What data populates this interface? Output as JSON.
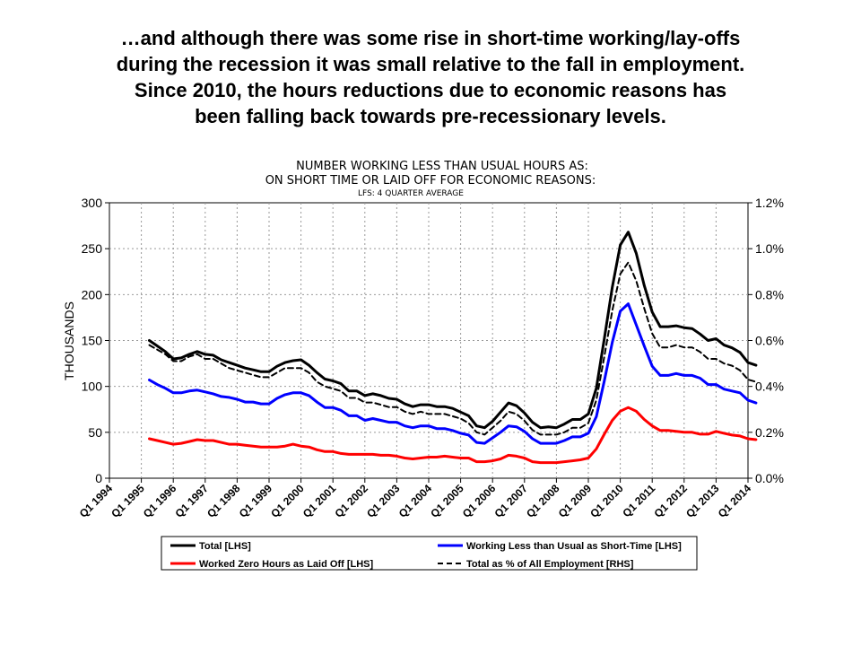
{
  "slide": {
    "title_lines": [
      "…and although there was some rise in short-time working/lay-offs",
      "during the recession it was small relative to the fall in employment.",
      "Since 2010, the hours reductions due to economic reasons has",
      "been falling back towards pre-recessionary levels."
    ]
  },
  "chart_data": {
    "type": "line",
    "title": [
      "NUMBER WORKING LESS THAN USUAL HOURS AS:",
      "ON SHORT TIME OR LAID OFF FOR ECONOMIC REASONS:"
    ],
    "subtitle": "LFS: 4 QUARTER AVERAGE",
    "ylabel_left": "THOUSANDS",
    "ylim_left": [
      0,
      300
    ],
    "yticks_left": [
      "0",
      "50",
      "100",
      "150",
      "200",
      "250",
      "300"
    ],
    "ylim_right": [
      0,
      1.2
    ],
    "yticks_right": [
      "0.0%",
      "0.2%",
      "0.4%",
      "0.6%",
      "0.8%",
      "1.0%",
      "1.2%"
    ],
    "x_tick_labels": [
      "Q1 1994",
      "Q1 1995",
      "Q1 1996",
      "Q1 1997",
      "Q1 1998",
      "Q1 1999",
      "Q1 2000",
      "Q1 2001",
      "Q1 2002",
      "Q1 2003",
      "Q1 2004",
      "Q1 2005",
      "Q1 2006",
      "Q1 2007",
      "Q1 2008",
      "Q1 2009",
      "Q1 2010",
      "Q1 2011",
      "Q1 2012",
      "Q1 2013",
      "Q1 2014"
    ],
    "x_start": "Q1 1995",
    "x_end": "Q4 2013",
    "grid": true,
    "legend_position": "bottom",
    "series": [
      {
        "name": "Total [LHS]",
        "axis": "left",
        "color": "#000000",
        "dash": "solid",
        "values": [
          150,
          144,
          138,
          130,
          131,
          135,
          138,
          135,
          134,
          129,
          126,
          123,
          120,
          118,
          116,
          116,
          122,
          126,
          128,
          129,
          123,
          115,
          108,
          106,
          103,
          95,
          95,
          90,
          92,
          90,
          87,
          86,
          81,
          78,
          80,
          80,
          78,
          78,
          76,
          72,
          68,
          57,
          55,
          62,
          72,
          82,
          79,
          71,
          61,
          55,
          56,
          55,
          59,
          64,
          64,
          70,
          98,
          152,
          208,
          254,
          268,
          245,
          210,
          181,
          165,
          165,
          166,
          164,
          163,
          157,
          150,
          152,
          145,
          142,
          137,
          126,
          123
        ]
      },
      {
        "name": "Working Less than Usual as Short-Time [LHS]",
        "axis": "left",
        "color": "#0000ff",
        "dash": "solid",
        "values": [
          107,
          102,
          98,
          93,
          93,
          95,
          96,
          94,
          92,
          89,
          88,
          86,
          83,
          83,
          81,
          81,
          87,
          91,
          93,
          93,
          90,
          83,
          77,
          77,
          74,
          68,
          68,
          63,
          65,
          63,
          61,
          61,
          57,
          55,
          57,
          57,
          54,
          54,
          52,
          49,
          47,
          39,
          38,
          44,
          50,
          57,
          56,
          51,
          43,
          38,
          38,
          38,
          41,
          45,
          45,
          49,
          67,
          106,
          148,
          182,
          190,
          167,
          144,
          122,
          112,
          112,
          114,
          112,
          112,
          109,
          102,
          102,
          97,
          95,
          93,
          85,
          82
        ]
      },
      {
        "name": "Worked Zero Hours as Laid Off [LHS]",
        "axis": "left",
        "color": "#ff0000",
        "dash": "solid",
        "values": [
          43,
          41,
          39,
          37,
          38,
          40,
          42,
          41,
          41,
          39,
          37,
          37,
          36,
          35,
          34,
          34,
          34,
          35,
          37,
          35,
          34,
          31,
          29,
          29,
          27,
          26,
          26,
          26,
          26,
          25,
          25,
          24,
          22,
          21,
          22,
          23,
          23,
          24,
          23,
          22,
          22,
          18,
          18,
          19,
          21,
          25,
          24,
          22,
          18,
          17,
          17,
          17,
          18,
          19,
          20,
          22,
          32,
          48,
          63,
          73,
          77,
          73,
          64,
          57,
          52,
          52,
          51,
          50,
          50,
          48,
          48,
          51,
          49,
          47,
          46,
          43,
          42
        ]
      },
      {
        "name": "Total as % of All Employment [RHS]",
        "axis": "right",
        "color": "#000000",
        "dash": "dashed",
        "values": [
          0.58,
          0.56,
          0.54,
          0.51,
          0.51,
          0.53,
          0.54,
          0.52,
          0.52,
          0.5,
          0.48,
          0.47,
          0.46,
          0.45,
          0.44,
          0.44,
          0.46,
          0.48,
          0.48,
          0.48,
          0.46,
          0.42,
          0.4,
          0.39,
          0.38,
          0.35,
          0.35,
          0.33,
          0.33,
          0.32,
          0.31,
          0.31,
          0.29,
          0.28,
          0.29,
          0.28,
          0.28,
          0.28,
          0.27,
          0.26,
          0.24,
          0.2,
          0.19,
          0.22,
          0.25,
          0.29,
          0.28,
          0.25,
          0.21,
          0.19,
          0.19,
          0.19,
          0.2,
          0.22,
          0.22,
          0.24,
          0.34,
          0.53,
          0.73,
          0.89,
          0.94,
          0.86,
          0.74,
          0.63,
          0.57,
          0.57,
          0.58,
          0.57,
          0.57,
          0.55,
          0.52,
          0.52,
          0.5,
          0.49,
          0.47,
          0.43,
          0.42
        ]
      }
    ]
  }
}
